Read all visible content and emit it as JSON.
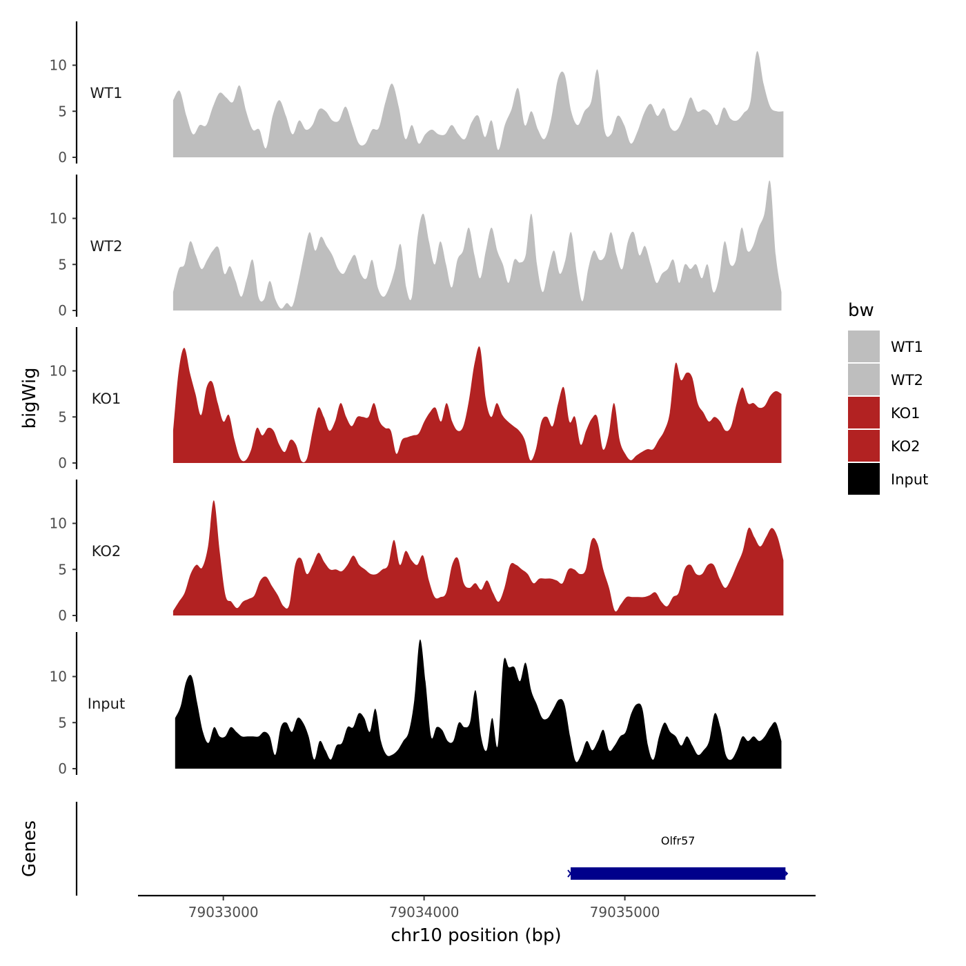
{
  "chart_data": {
    "type": "area",
    "xlabel": "chr10 position (bp)",
    "ylabel": "bigWig",
    "genes_panel_label": "Genes",
    "xlim": [
      79032575,
      79035950
    ],
    "x_ticks": [
      79033000,
      79034000,
      79035000
    ],
    "x_tick_labels": [
      "79033000",
      "79034000",
      "79035000"
    ],
    "ylim": [
      0,
      14.5
    ],
    "y_ticks": [
      0,
      5,
      10
    ],
    "y_tick_labels": [
      "0",
      "5",
      "10"
    ],
    "legend_title": "bw",
    "series": [
      {
        "name": "WT1",
        "color": "#bebebe",
        "x_start": 79032750,
        "x_end": 79035790,
        "values": [
          6.2,
          7.2,
          4.5,
          2.5,
          3.5,
          3.5,
          5.5,
          7,
          6.5,
          6,
          7.8,
          5,
          3,
          3,
          1,
          4.5,
          6.2,
          4.5,
          2.5,
          4,
          3,
          3.5,
          5.2,
          5,
          4,
          4,
          5.5,
          3.5,
          1.5,
          1.5,
          3,
          3.2,
          6,
          8,
          5.5,
          2,
          3.5,
          1.5,
          2.5,
          3,
          2.5,
          2.5,
          3.5,
          2.5,
          2,
          3.8,
          4.5,
          2.2,
          4,
          0.8,
          3.5,
          5.2,
          7.5,
          3.5,
          5,
          3,
          2,
          4.2,
          8.5,
          9,
          5,
          3.5,
          5,
          6,
          9.5,
          3,
          2.5,
          4.5,
          3.5,
          1.5,
          2.8,
          4.8,
          5.8,
          4.5,
          5.3,
          3.2,
          3,
          4.5,
          6.5,
          5,
          5.2,
          4.7,
          3.5,
          5.4,
          4.2,
          4,
          4.8,
          6,
          11.5,
          8,
          5.5,
          5,
          5
        ]
      },
      {
        "name": "WT2",
        "color": "#bebebe",
        "x_start": 79032750,
        "x_end": 79035780,
        "values": [
          2,
          4.5,
          5,
          7.5,
          6,
          4.5,
          5.5,
          6.5,
          6.8,
          4,
          4.8,
          3.2,
          1.5,
          3.5,
          5.5,
          1.5,
          1.2,
          3.2,
          1.2,
          0.2,
          0.8,
          0.5,
          3,
          6,
          8.5,
          6.5,
          8,
          7,
          6,
          4.5,
          4,
          5.2,
          6,
          4,
          3.5,
          5.5,
          2.5,
          1.5,
          2.5,
          4.5,
          7.2,
          2.5,
          1.5,
          8,
          10.5,
          7.5,
          5,
          7.5,
          5,
          2.5,
          5.5,
          6.5,
          9,
          6,
          3.5,
          6.5,
          9,
          6.5,
          5,
          3,
          5.5,
          5.2,
          6,
          10.5,
          5,
          2,
          4.5,
          6.5,
          4,
          5.5,
          8.5,
          4,
          1,
          4.5,
          6.5,
          5.5,
          6,
          8.5,
          6,
          4.5,
          7.5,
          8.5,
          6,
          7,
          5,
          3,
          4,
          4.5,
          5.5,
          3,
          5,
          4.5,
          5,
          3.5,
          5,
          2,
          3.5,
          7.5,
          5,
          5.5,
          9,
          6.5,
          7,
          9,
          10.5,
          14,
          6,
          2
        ]
      },
      {
        "name": "KO1",
        "color": "#b22222",
        "x_start": 79032750,
        "x_end": 79035780,
        "values": [
          3.5,
          10,
          12.5,
          9.8,
          7.5,
          5.2,
          8.2,
          8.8,
          6.5,
          4.5,
          5.2,
          2.5,
          0.5,
          0.3,
          1.5,
          3.8,
          3,
          3.8,
          3.5,
          2,
          1.2,
          2.5,
          2,
          0.2,
          0.5,
          3.5,
          6,
          5,
          3.5,
          4.5,
          6.5,
          5,
          4,
          5,
          5,
          5,
          6.5,
          4.5,
          3.8,
          3.5,
          1,
          2.5,
          2.8,
          3,
          3.2,
          4.5,
          5.5,
          6,
          4.5,
          6.5,
          4.5,
          3.5,
          4,
          6.8,
          10.8,
          12.5,
          7,
          5,
          6.5,
          5.2,
          4.5,
          4,
          3.5,
          2.5,
          0.3,
          1.5,
          4.5,
          5,
          4,
          6.5,
          8.2,
          4.5,
          5,
          2,
          3.5,
          4.8,
          5,
          1.5,
          3,
          6.5,
          2.5,
          1,
          0.3,
          0.8,
          1.2,
          1.5,
          1.5,
          2.5,
          3.5,
          5.5,
          10.8,
          9,
          9.8,
          9.3,
          6.5,
          5.5,
          4.5,
          5,
          4.5,
          3.5,
          4,
          6.5,
          8.2,
          6.5,
          6.5,
          6,
          6.2,
          7.3,
          7.8,
          7.5
        ]
      },
      {
        "name": "KO2",
        "color": "#b22222",
        "x_start": 79032750,
        "x_end": 79035790,
        "values": [
          0.5,
          1.5,
          2.5,
          4.5,
          5.5,
          5.2,
          7.5,
          12.5,
          7,
          2.2,
          1.5,
          0.8,
          1.5,
          1.8,
          2.2,
          3.8,
          4.2,
          3.2,
          2.2,
          1,
          1.2,
          5.5,
          6.2,
          4.5,
          5.5,
          6.8,
          5.8,
          5,
          5,
          4.8,
          5.5,
          6.5,
          5.5,
          5,
          4.5,
          4.5,
          5,
          5.5,
          8.2,
          5.5,
          7,
          6,
          5.5,
          6.5,
          3.8,
          2,
          2,
          2.5,
          5.5,
          6.2,
          3.5,
          3,
          3.5,
          2.8,
          3.8,
          2.5,
          1.5,
          3,
          5.5,
          5.5,
          5,
          4.5,
          3.5,
          4,
          4,
          4,
          3.8,
          3.5,
          5,
          5,
          4.5,
          5,
          8.2,
          7.8,
          5,
          3,
          0.5,
          1.2,
          2,
          2,
          2,
          2,
          2.2,
          2.5,
          1.5,
          1,
          2,
          2.5,
          5,
          5.5,
          4.5,
          4.5,
          5.5,
          5.5,
          4,
          3,
          4,
          5.5,
          7,
          9.5,
          8.5,
          7.5,
          8.5,
          9.5,
          8.5,
          6
        ]
      },
      {
        "name": "Input",
        "color": "#000000",
        "x_start": 79032760,
        "x_end": 79035780,
        "values": [
          5.5,
          6.8,
          9.5,
          10,
          7,
          4,
          2.8,
          4.5,
          3.5,
          3.5,
          4.5,
          4,
          3.5,
          3.5,
          3.5,
          3.5,
          4,
          3.5,
          1.5,
          4.5,
          5,
          4,
          5.5,
          5,
          3.5,
          1,
          3,
          2,
          1,
          2.5,
          2.8,
          4.5,
          4.5,
          6,
          5.5,
          4,
          6.5,
          3,
          1.5,
          1.5,
          2,
          3,
          4,
          7.5,
          14,
          9.5,
          3.5,
          4.5,
          4.2,
          3,
          3,
          5,
          4.5,
          5,
          8.5,
          3.5,
          2,
          5.5,
          2.5,
          11.5,
          11,
          11,
          9.5,
          11.5,
          8.5,
          7,
          5.5,
          5.5,
          6.5,
          7.5,
          7,
          3.5,
          0.8,
          1.5,
          3,
          2,
          3,
          4.2,
          2,
          2.5,
          3.5,
          4,
          6,
          7,
          6.5,
          2.5,
          1,
          3.5,
          5,
          4,
          3.5,
          2.5,
          3.5,
          2.5,
          1.5,
          2,
          3,
          6,
          4.5,
          1.5,
          1,
          2,
          3.5,
          3,
          3.5,
          3,
          3.5,
          4.5,
          5,
          3
        ]
      }
    ],
    "gene": {
      "name": "Olfr57",
      "start": 79034730,
      "end": 79035800,
      "color": "#00008b"
    }
  }
}
